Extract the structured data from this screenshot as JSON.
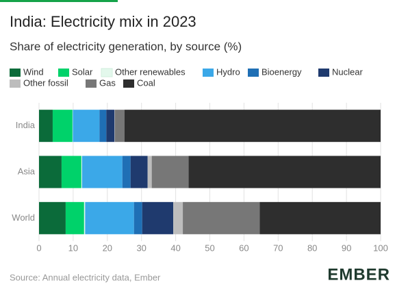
{
  "chart_data": {
    "type": "stacked_barh",
    "title": "India: Electricity mix in 2023",
    "subtitle": "Share of electricity generation, by source (%)",
    "source": "Source: Annual electricity data, Ember",
    "logo": "EMBER",
    "categories": [
      "India",
      "Asia",
      "World"
    ],
    "series": [
      {
        "name": "Wind",
        "color": "#0b6b3a",
        "values": [
          4.0,
          6.6,
          7.8
        ]
      },
      {
        "name": "Solar",
        "color": "#00d26a",
        "values": [
          5.8,
          5.8,
          5.4
        ]
      },
      {
        "name": "Other renewables",
        "color": "#e3f8ec",
        "values": [
          0.1,
          0.2,
          0.3
        ]
      },
      {
        "name": "Hydro",
        "color": "#3ba8e8",
        "values": [
          7.8,
          11.8,
          14.3
        ]
      },
      {
        "name": "Bioenergy",
        "color": "#1f6fb5",
        "values": [
          2.0,
          2.4,
          2.4
        ]
      },
      {
        "name": "Nuclear",
        "color": "#1f3a6e",
        "values": [
          2.4,
          5.0,
          9.1
        ]
      },
      {
        "name": "Other fossil",
        "color": "#bdbdbd",
        "values": [
          0.1,
          1.2,
          2.8
        ]
      },
      {
        "name": "Gas",
        "color": "#777777",
        "values": [
          2.8,
          10.8,
          22.5
        ]
      },
      {
        "name": "Coal",
        "color": "#2e2e2e",
        "values": [
          75.0,
          56.2,
          35.4
        ]
      }
    ],
    "xlim": [
      0,
      100
    ],
    "xticks": [
      0,
      10,
      20,
      30,
      40,
      50,
      60,
      70,
      80,
      90,
      100
    ],
    "grid": true
  }
}
